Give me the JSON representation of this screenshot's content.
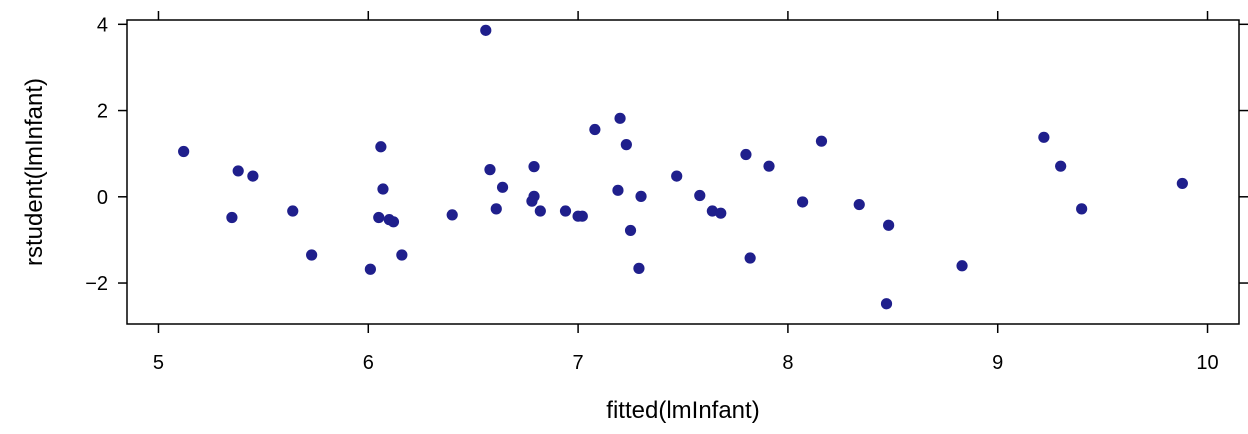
{
  "chart_data": {
    "type": "scatter",
    "xlabel": "fitted(lmInfant)",
    "ylabel": "rstudent(lmInfant)",
    "xlim": [
      4.85,
      10.15
    ],
    "ylim": [
      -2.95,
      4.1
    ],
    "xticks": [
      5,
      6,
      7,
      8,
      9,
      10
    ],
    "xtick_labels": [
      "5",
      "6",
      "7",
      "8",
      "9",
      "10"
    ],
    "yticks": [
      -2,
      0,
      2,
      4
    ],
    "ytick_labels": [
      "−2",
      "0",
      "2",
      "4"
    ],
    "grid": false,
    "point_color": "#1f1f8c",
    "series": [
      {
        "points": [
          [
            5.12,
            1.05
          ],
          [
            5.35,
            -0.48
          ],
          [
            5.38,
            0.6
          ],
          [
            5.45,
            0.48
          ],
          [
            5.64,
            -0.33
          ],
          [
            5.73,
            -1.35
          ],
          [
            6.01,
            -1.68
          ],
          [
            6.05,
            -0.48
          ],
          [
            6.06,
            1.16
          ],
          [
            6.07,
            0.18
          ],
          [
            6.1,
            -0.53
          ],
          [
            6.12,
            -0.58
          ],
          [
            6.16,
            -1.35
          ],
          [
            6.4,
            -0.42
          ],
          [
            6.56,
            3.86
          ],
          [
            6.58,
            0.63
          ],
          [
            6.61,
            -0.28
          ],
          [
            6.64,
            0.22
          ],
          [
            6.78,
            -0.1
          ],
          [
            6.79,
            0.7
          ],
          [
            6.79,
            0.01
          ],
          [
            6.82,
            -0.33
          ],
          [
            6.94,
            -0.33
          ],
          [
            7.0,
            -0.45
          ],
          [
            7.02,
            -0.45
          ],
          [
            7.08,
            1.56
          ],
          [
            7.19,
            0.15
          ],
          [
            7.2,
            1.82
          ],
          [
            7.23,
            1.21
          ],
          [
            7.25,
            -0.78
          ],
          [
            7.29,
            -1.66
          ],
          [
            7.3,
            0.01
          ],
          [
            7.47,
            0.48
          ],
          [
            7.58,
            0.03
          ],
          [
            7.64,
            -0.33
          ],
          [
            7.68,
            -0.38
          ],
          [
            7.8,
            0.98
          ],
          [
            7.82,
            -1.42
          ],
          [
            7.91,
            0.71
          ],
          [
            8.07,
            -0.12
          ],
          [
            8.16,
            1.29
          ],
          [
            8.34,
            -0.18
          ],
          [
            8.47,
            -2.48
          ],
          [
            8.48,
            -0.66
          ],
          [
            8.83,
            -1.6
          ],
          [
            9.22,
            1.38
          ],
          [
            9.3,
            0.71
          ],
          [
            9.4,
            -0.28
          ],
          [
            9.88,
            0.31
          ]
        ]
      }
    ]
  }
}
